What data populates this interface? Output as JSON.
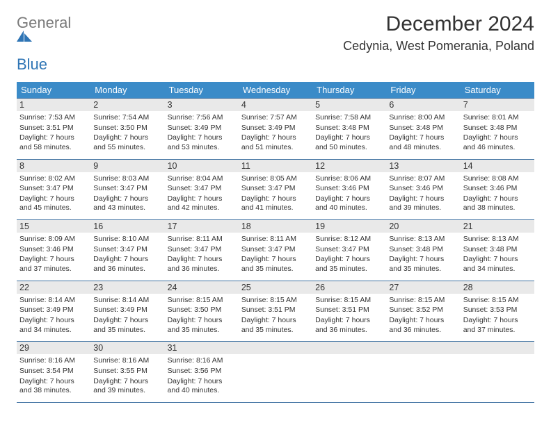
{
  "logo": {
    "line1": "General",
    "line2": "Blue"
  },
  "title": "December 2024",
  "location": "Cedynia, West Pomerania, Poland",
  "colors": {
    "header_bg": "#3b8bc8",
    "header_text": "#ffffff",
    "border": "#3b6fa0",
    "daynum_bg": "#e9e9e9",
    "logo_gray": "#7a7a7a",
    "logo_blue": "#2f75b5"
  },
  "weekdays": [
    "Sunday",
    "Monday",
    "Tuesday",
    "Wednesday",
    "Thursday",
    "Friday",
    "Saturday"
  ],
  "weeks": [
    [
      {
        "day": "1",
        "sunrise": "Sunrise: 7:53 AM",
        "sunset": "Sunset: 3:51 PM",
        "daylight": "Daylight: 7 hours and 58 minutes."
      },
      {
        "day": "2",
        "sunrise": "Sunrise: 7:54 AM",
        "sunset": "Sunset: 3:50 PM",
        "daylight": "Daylight: 7 hours and 55 minutes."
      },
      {
        "day": "3",
        "sunrise": "Sunrise: 7:56 AM",
        "sunset": "Sunset: 3:49 PM",
        "daylight": "Daylight: 7 hours and 53 minutes."
      },
      {
        "day": "4",
        "sunrise": "Sunrise: 7:57 AM",
        "sunset": "Sunset: 3:49 PM",
        "daylight": "Daylight: 7 hours and 51 minutes."
      },
      {
        "day": "5",
        "sunrise": "Sunrise: 7:58 AM",
        "sunset": "Sunset: 3:48 PM",
        "daylight": "Daylight: 7 hours and 50 minutes."
      },
      {
        "day": "6",
        "sunrise": "Sunrise: 8:00 AM",
        "sunset": "Sunset: 3:48 PM",
        "daylight": "Daylight: 7 hours and 48 minutes."
      },
      {
        "day": "7",
        "sunrise": "Sunrise: 8:01 AM",
        "sunset": "Sunset: 3:48 PM",
        "daylight": "Daylight: 7 hours and 46 minutes."
      }
    ],
    [
      {
        "day": "8",
        "sunrise": "Sunrise: 8:02 AM",
        "sunset": "Sunset: 3:47 PM",
        "daylight": "Daylight: 7 hours and 45 minutes."
      },
      {
        "day": "9",
        "sunrise": "Sunrise: 8:03 AM",
        "sunset": "Sunset: 3:47 PM",
        "daylight": "Daylight: 7 hours and 43 minutes."
      },
      {
        "day": "10",
        "sunrise": "Sunrise: 8:04 AM",
        "sunset": "Sunset: 3:47 PM",
        "daylight": "Daylight: 7 hours and 42 minutes."
      },
      {
        "day": "11",
        "sunrise": "Sunrise: 8:05 AM",
        "sunset": "Sunset: 3:47 PM",
        "daylight": "Daylight: 7 hours and 41 minutes."
      },
      {
        "day": "12",
        "sunrise": "Sunrise: 8:06 AM",
        "sunset": "Sunset: 3:46 PM",
        "daylight": "Daylight: 7 hours and 40 minutes."
      },
      {
        "day": "13",
        "sunrise": "Sunrise: 8:07 AM",
        "sunset": "Sunset: 3:46 PM",
        "daylight": "Daylight: 7 hours and 39 minutes."
      },
      {
        "day": "14",
        "sunrise": "Sunrise: 8:08 AM",
        "sunset": "Sunset: 3:46 PM",
        "daylight": "Daylight: 7 hours and 38 minutes."
      }
    ],
    [
      {
        "day": "15",
        "sunrise": "Sunrise: 8:09 AM",
        "sunset": "Sunset: 3:46 PM",
        "daylight": "Daylight: 7 hours and 37 minutes."
      },
      {
        "day": "16",
        "sunrise": "Sunrise: 8:10 AM",
        "sunset": "Sunset: 3:47 PM",
        "daylight": "Daylight: 7 hours and 36 minutes."
      },
      {
        "day": "17",
        "sunrise": "Sunrise: 8:11 AM",
        "sunset": "Sunset: 3:47 PM",
        "daylight": "Daylight: 7 hours and 36 minutes."
      },
      {
        "day": "18",
        "sunrise": "Sunrise: 8:11 AM",
        "sunset": "Sunset: 3:47 PM",
        "daylight": "Daylight: 7 hours and 35 minutes."
      },
      {
        "day": "19",
        "sunrise": "Sunrise: 8:12 AM",
        "sunset": "Sunset: 3:47 PM",
        "daylight": "Daylight: 7 hours and 35 minutes."
      },
      {
        "day": "20",
        "sunrise": "Sunrise: 8:13 AM",
        "sunset": "Sunset: 3:48 PM",
        "daylight": "Daylight: 7 hours and 35 minutes."
      },
      {
        "day": "21",
        "sunrise": "Sunrise: 8:13 AM",
        "sunset": "Sunset: 3:48 PM",
        "daylight": "Daylight: 7 hours and 34 minutes."
      }
    ],
    [
      {
        "day": "22",
        "sunrise": "Sunrise: 8:14 AM",
        "sunset": "Sunset: 3:49 PM",
        "daylight": "Daylight: 7 hours and 34 minutes."
      },
      {
        "day": "23",
        "sunrise": "Sunrise: 8:14 AM",
        "sunset": "Sunset: 3:49 PM",
        "daylight": "Daylight: 7 hours and 35 minutes."
      },
      {
        "day": "24",
        "sunrise": "Sunrise: 8:15 AM",
        "sunset": "Sunset: 3:50 PM",
        "daylight": "Daylight: 7 hours and 35 minutes."
      },
      {
        "day": "25",
        "sunrise": "Sunrise: 8:15 AM",
        "sunset": "Sunset: 3:51 PM",
        "daylight": "Daylight: 7 hours and 35 minutes."
      },
      {
        "day": "26",
        "sunrise": "Sunrise: 8:15 AM",
        "sunset": "Sunset: 3:51 PM",
        "daylight": "Daylight: 7 hours and 36 minutes."
      },
      {
        "day": "27",
        "sunrise": "Sunrise: 8:15 AM",
        "sunset": "Sunset: 3:52 PM",
        "daylight": "Daylight: 7 hours and 36 minutes."
      },
      {
        "day": "28",
        "sunrise": "Sunrise: 8:15 AM",
        "sunset": "Sunset: 3:53 PM",
        "daylight": "Daylight: 7 hours and 37 minutes."
      }
    ],
    [
      {
        "day": "29",
        "sunrise": "Sunrise: 8:16 AM",
        "sunset": "Sunset: 3:54 PM",
        "daylight": "Daylight: 7 hours and 38 minutes."
      },
      {
        "day": "30",
        "sunrise": "Sunrise: 8:16 AM",
        "sunset": "Sunset: 3:55 PM",
        "daylight": "Daylight: 7 hours and 39 minutes."
      },
      {
        "day": "31",
        "sunrise": "Sunrise: 8:16 AM",
        "sunset": "Sunset: 3:56 PM",
        "daylight": "Daylight: 7 hours and 40 minutes."
      },
      {
        "day": "",
        "sunrise": "",
        "sunset": "",
        "daylight": ""
      },
      {
        "day": "",
        "sunrise": "",
        "sunset": "",
        "daylight": ""
      },
      {
        "day": "",
        "sunrise": "",
        "sunset": "",
        "daylight": ""
      },
      {
        "day": "",
        "sunrise": "",
        "sunset": "",
        "daylight": ""
      }
    ]
  ]
}
